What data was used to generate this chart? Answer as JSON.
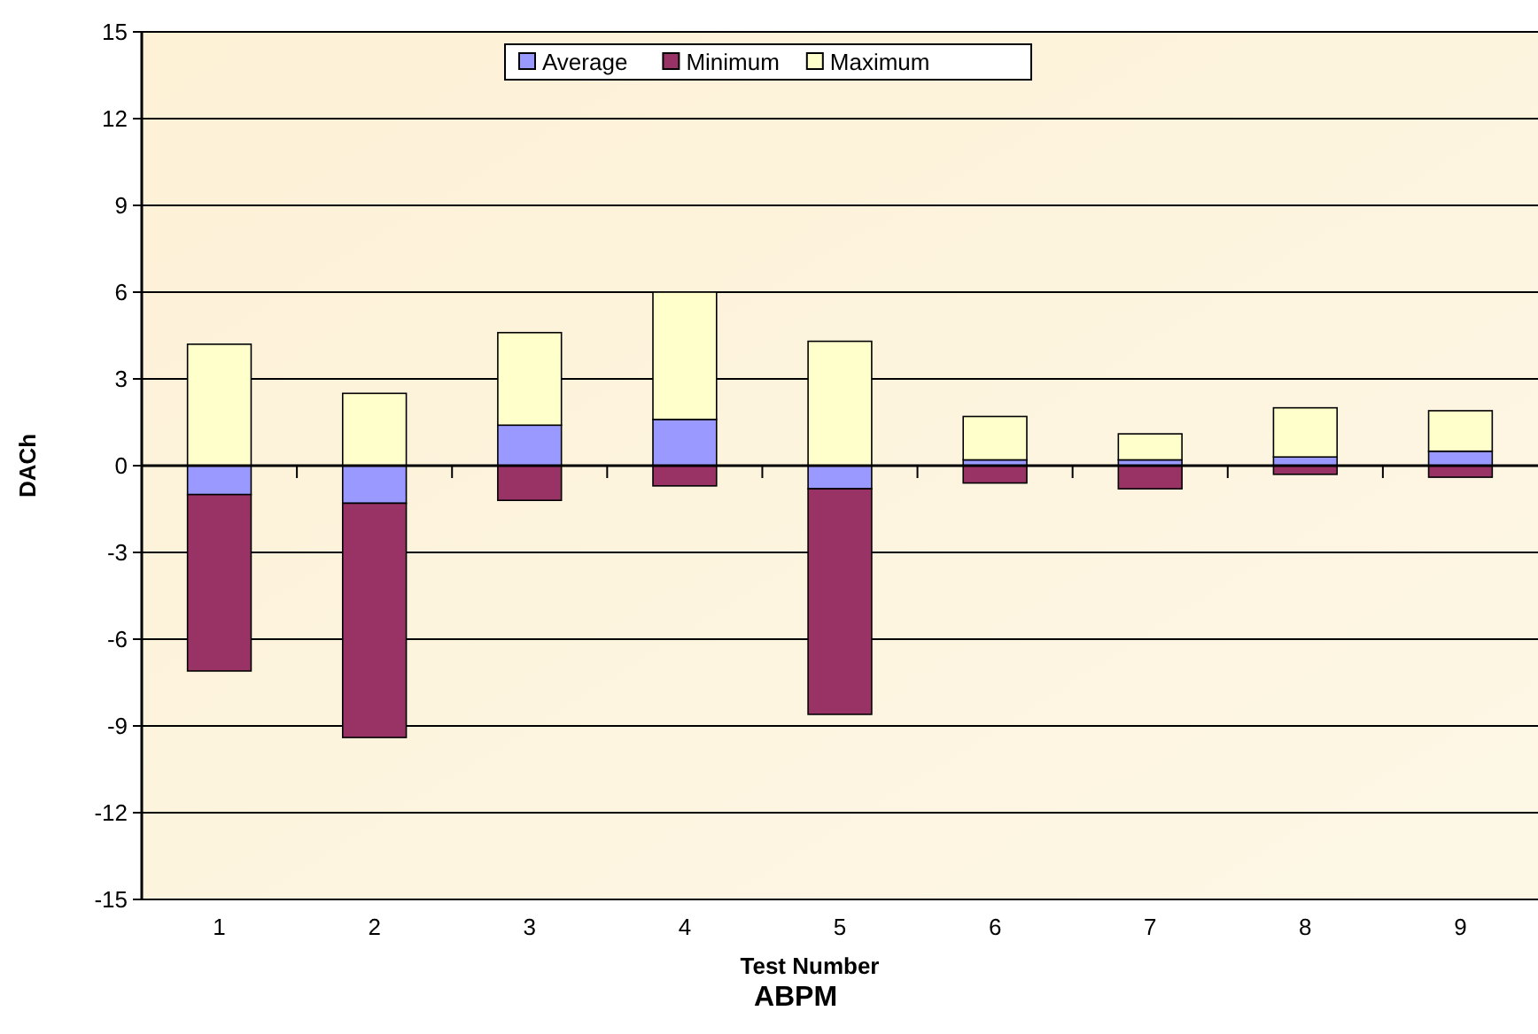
{
  "chart_data": {
    "type": "bar",
    "title": "ABPM",
    "xlabel": "Test Number",
    "ylabel": "DACh",
    "categories": [
      "1",
      "2",
      "3",
      "4",
      "5",
      "6",
      "7",
      "8",
      "9"
    ],
    "stacked": true,
    "series": [
      {
        "name": "Average",
        "color": "#9999ff",
        "values": [
          -1.0,
          -1.3,
          1.4,
          1.6,
          -0.8,
          0.2,
          0.2,
          0.3,
          0.5
        ]
      },
      {
        "name": "Minimum",
        "color": "#993366",
        "values": [
          -6.1,
          -8.1,
          -1.2,
          -0.7,
          -7.8,
          -0.6,
          -0.8,
          -0.3,
          -0.4
        ]
      },
      {
        "name": "Maximum",
        "color": "#ffffcc",
        "values": [
          4.2,
          2.5,
          3.2,
          4.4,
          4.3,
          1.5,
          0.9,
          1.7,
          1.4
        ]
      }
    ],
    "ylim": [
      -15,
      15
    ],
    "yticks": [
      -15,
      -12,
      -9,
      -6,
      -3,
      0,
      3,
      6,
      9,
      12,
      15
    ],
    "grid": "y",
    "legend": "top"
  }
}
